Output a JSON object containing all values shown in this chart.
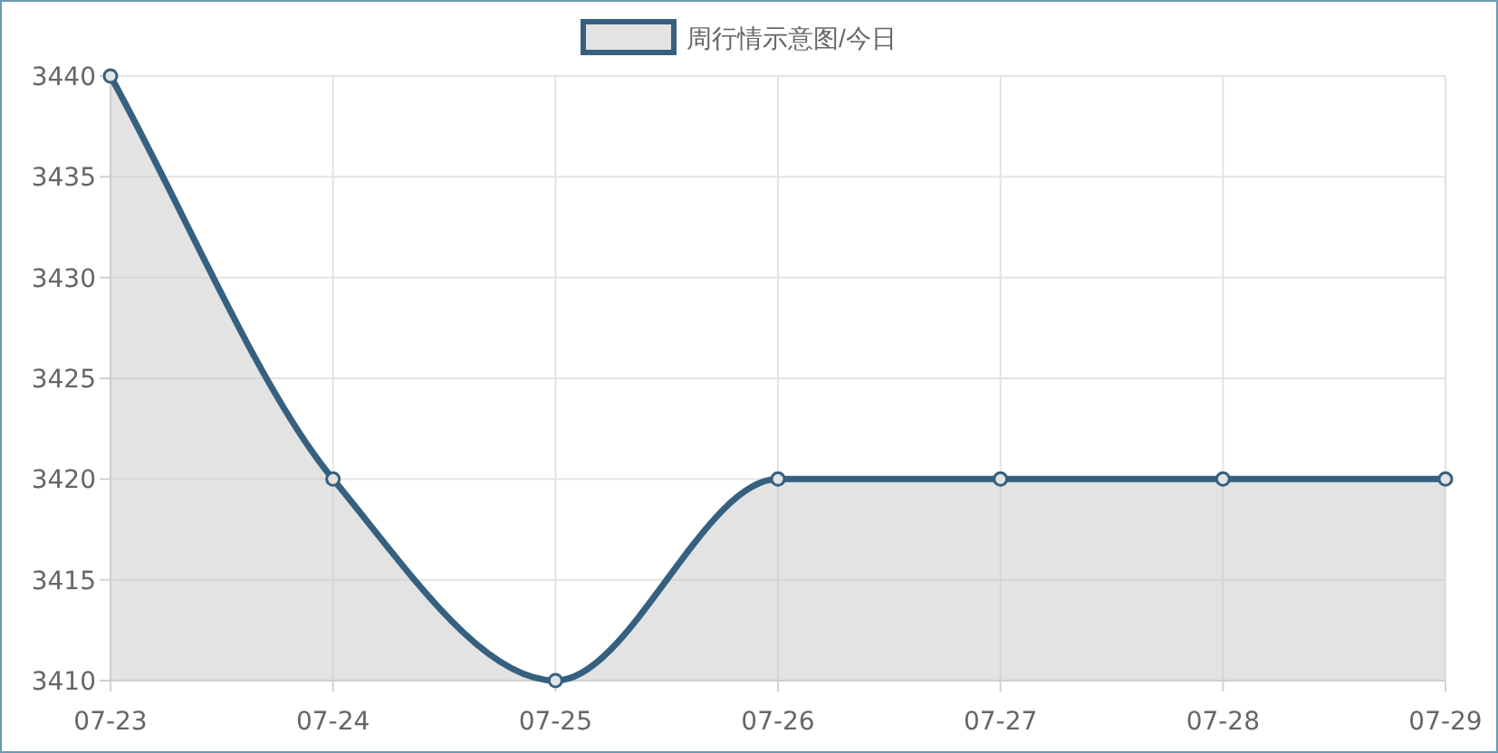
{
  "chart_data": {
    "type": "area",
    "categories": [
      "07-23",
      "07-24",
      "07-25",
      "07-26",
      "07-27",
      "07-28",
      "07-29"
    ],
    "series": [
      {
        "name": "周行情示意图/今日",
        "color": "#36607f",
        "values": [
          3440,
          3420,
          3410,
          3420,
          3420,
          3420,
          3420
        ]
      }
    ],
    "ylim": [
      3410,
      3440
    ],
    "yticks": [
      3410,
      3415,
      3420,
      3425,
      3430,
      3435,
      3440
    ],
    "grid": true,
    "legend": "top",
    "marker": "circle"
  }
}
